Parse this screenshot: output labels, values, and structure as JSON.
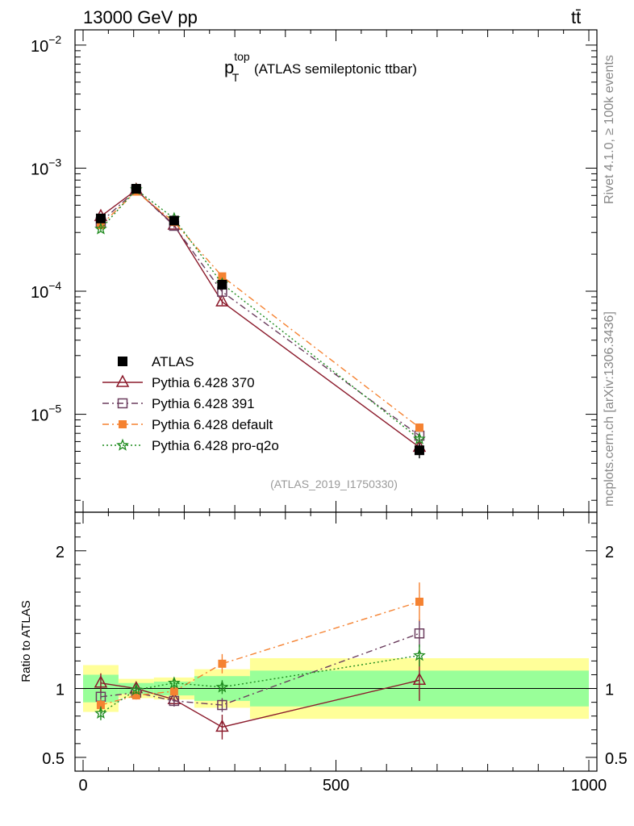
{
  "header": {
    "energy": "13000 GeV pp",
    "process": "tt̄"
  },
  "side_labels": {
    "rivet": "Rivet 4.1.0, ≥ 100k events",
    "mcplots": "mcplots.cern.ch [arXiv:1306.3436]"
  },
  "plot_title": {
    "main": "p",
    "sup": "top",
    "sub": "T",
    "rest": " (ATLAS semileptonic ttbar)"
  },
  "analysis_id": "(ATLAS_2019_I1750330)",
  "chart_data": [
    {
      "type": "scatter",
      "panel": "main",
      "yscale": "log",
      "xlim": [
        0,
        1000
      ],
      "ylim": [
        1.6e-06,
        0.0133
      ],
      "ytick_labels": [
        {
          "v": 1e-05,
          "base": "10",
          "exp": "−5"
        },
        {
          "v": 0.0001,
          "base": "10",
          "exp": "−4"
        },
        {
          "v": 0.001,
          "base": "10",
          "exp": "−3"
        },
        {
          "v": 0.01,
          "base": "10",
          "exp": "−2"
        }
      ],
      "x": [
        35,
        105,
        180,
        275,
        665
      ],
      "series": [
        {
          "name": "ATLAS",
          "key": "atlas",
          "color": "#000000",
          "marker": "filled-square",
          "values": [
            0.00039,
            0.00068,
            0.000375,
            0.000113,
            5.1e-06
          ],
          "err_rel": [
            0.07,
            0.04,
            0.05,
            0.09,
            0.14
          ]
        },
        {
          "name": "Pythia 6.428 370",
          "key": "p370",
          "color": "#8b1a2b",
          "marker": "open-triangle",
          "dash": "",
          "values": [
            0.000405,
            0.000665,
            0.000345,
            8.2e-05,
            5.4e-06
          ],
          "err_rel": [
            0.04,
            0.03,
            0.04,
            0.06,
            0.12
          ]
        },
        {
          "name": "Pythia 6.428 391",
          "key": "p391",
          "color": "#6b3d5e",
          "marker": "open-square",
          "dash": "8,4,2,4",
          "values": [
            0.000365,
            0.00066,
            0.00034,
            9.9e-05,
            6.7e-06
          ],
          "err_rel": [
            0.04,
            0.03,
            0.04,
            0.06,
            0.06
          ]
        },
        {
          "name": "Pythia 6.428 default",
          "key": "pdef",
          "color": "#f58231",
          "marker": "filled-square-small",
          "dash": "8,4,2,4",
          "values": [
            0.000345,
            0.000645,
            0.000365,
            0.000132,
            7.8e-06
          ],
          "err_rel": [
            0.04,
            0.03,
            0.04,
            0.06,
            0.08
          ]
        },
        {
          "name": "Pythia 6.428 pro-q2o",
          "key": "pq2o",
          "color": "#1f8b1f",
          "marker": "star",
          "dash": "2,3",
          "values": [
            0.00032,
            0.00067,
            0.00039,
            0.000115,
            6.3e-06
          ],
          "err_rel": [
            0.04,
            0.03,
            0.04,
            0.06,
            0.06
          ]
        }
      ]
    },
    {
      "type": "scatter",
      "panel": "ratio",
      "ylabel": "Ratio to ATLAS",
      "xlim": [
        0,
        1000
      ],
      "ylim": [
        0.4,
        2.28
      ],
      "ytick_labels": [
        {
          "v": 0.5,
          "label": "0.5"
        },
        {
          "v": 1,
          "label": "1"
        },
        {
          "v": 2,
          "label": "2"
        }
      ],
      "xtick_labels": [
        {
          "v": 0,
          "label": "0"
        },
        {
          "v": 500,
          "label": "500"
        },
        {
          "v": 1000,
          "label": "1000"
        }
      ],
      "bands": [
        {
          "x0": 0,
          "x1": 70,
          "y1a": 0.9,
          "y1b": 1.1,
          "y2a": 0.83,
          "y2b": 1.17
        },
        {
          "x0": 70,
          "x1": 140,
          "y1a": 0.96,
          "y1b": 1.04,
          "y2a": 0.93,
          "y2b": 1.07
        },
        {
          "x0": 140,
          "x1": 220,
          "y1a": 0.95,
          "y1b": 1.05,
          "y2a": 0.92,
          "y2b": 1.08
        },
        {
          "x0": 220,
          "x1": 330,
          "y1a": 0.91,
          "y1b": 1.09,
          "y2a": 0.86,
          "y2b": 1.14
        },
        {
          "x0": 330,
          "x1": 1000,
          "y1a": 0.87,
          "y1b": 1.13,
          "y2a": 0.78,
          "y2b": 1.22
        }
      ],
      "x": [
        35,
        105,
        180,
        275,
        665
      ],
      "series": [
        {
          "key": "p370",
          "values": [
            1.04,
            1.0,
            0.92,
            0.72,
            1.06
          ],
          "err": [
            0.07,
            0.04,
            0.05,
            0.09,
            0.15
          ]
        },
        {
          "key": "p391",
          "values": [
            0.94,
            0.97,
            0.91,
            0.88,
            1.4
          ],
          "err": [
            0.04,
            0.03,
            0.04,
            0.05,
            0.1
          ]
        },
        {
          "key": "pdef",
          "values": [
            0.88,
            0.95,
            0.98,
            1.18,
            1.63
          ],
          "err": [
            0.04,
            0.03,
            0.04,
            0.07,
            0.14
          ]
        },
        {
          "key": "pq2o",
          "values": [
            0.82,
            0.99,
            1.04,
            1.01,
            1.24
          ],
          "err": [
            0.05,
            0.03,
            0.04,
            0.05,
            0.08
          ]
        }
      ]
    }
  ]
}
